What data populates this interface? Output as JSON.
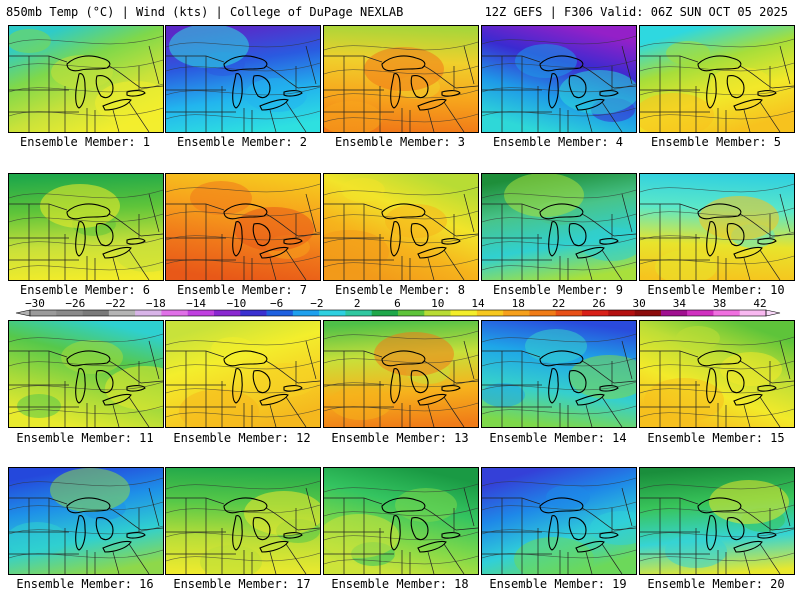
{
  "header": {
    "left": "850mb Temp (°C) | Wind (kts) | College of DuPage NEXLAB",
    "right": "12Z GEFS | F306 Valid: 06Z SUN OCT 05 2025"
  },
  "member_prefix": "Ensemble Member: ",
  "members": [
    1,
    2,
    3,
    4,
    5,
    6,
    7,
    8,
    9,
    10,
    11,
    12,
    13,
    14,
    15,
    16,
    17,
    18,
    19,
    20
  ],
  "member_palettes": [
    [
      "#2ecbc8",
      "#7fd84a",
      "#c9e23a",
      "#f3ee2e"
    ],
    [
      "#5a28c8",
      "#2a5ae0",
      "#22b4ee",
      "#2ee0e0"
    ],
    [
      "#a6d63a",
      "#f0d02c",
      "#f7a61c",
      "#f07818"
    ],
    [
      "#9420c8",
      "#3a2ad0",
      "#1e9ae8",
      "#2ed8d8"
    ],
    [
      "#2ed8e0",
      "#a6de3a",
      "#f2e82a",
      "#f7c21e"
    ],
    [
      "#1fa84a",
      "#5ec43a",
      "#c8e03a",
      "#f3ec2a"
    ],
    [
      "#f6c81e",
      "#f7a21c",
      "#f0781a",
      "#e85818"
    ],
    [
      "#b8dc34",
      "#f2e42a",
      "#f6b41c",
      "#f29a1a"
    ],
    [
      "#1e8e3a",
      "#48c48a",
      "#30d0d0",
      "#a8e03c"
    ],
    [
      "#30d0e0",
      "#5ce8c8",
      "#e8e42c",
      "#f6c41e"
    ],
    [
      "#2ed0d0",
      "#56c84a",
      "#a6da3a",
      "#e8ea2e"
    ],
    [
      "#c8e23a",
      "#f3ee2c",
      "#f6d224",
      "#f5b81e"
    ],
    [
      "#4ec048",
      "#c8e03a",
      "#f6b21c",
      "#f07c18"
    ],
    [
      "#2a4adc",
      "#1ea6e8",
      "#36d0cc",
      "#7ed84a"
    ],
    [
      "#5ec43a",
      "#bede36",
      "#f3ea2a",
      "#f6c01e"
    ],
    [
      "#2448dc",
      "#1e90e8",
      "#30d0d0",
      "#8ed84a"
    ],
    [
      "#22a84a",
      "#56c848",
      "#bade38",
      "#eeea2e"
    ],
    [
      "#1a9a44",
      "#34c460",
      "#7ed84a",
      "#cde43a"
    ],
    [
      "#3440d8",
      "#1e88e8",
      "#30d0d8",
      "#6cd85a"
    ],
    [
      "#1a8e3c",
      "#38c45a",
      "#36d4d4",
      "#e8e82e"
    ]
  ],
  "colorbar": {
    "labels": [
      "−30",
      "−26",
      "−22",
      "−18",
      "−14",
      "−10",
      "−6",
      "−2",
      "2",
      "6",
      "10",
      "14",
      "18",
      "22",
      "26",
      "30",
      "34",
      "38",
      "42"
    ],
    "colors": [
      "#9a9a9a",
      "#8a8a8a",
      "#7a7a7a",
      "#b4b4b4",
      "#d8b4e8",
      "#e070e8",
      "#c040e0",
      "#8a28d0",
      "#3a30d0",
      "#1e60e0",
      "#1ea0ee",
      "#2ed0e0",
      "#30c8a0",
      "#1fa84a",
      "#5ec43a",
      "#b8dc34",
      "#f3ee2a",
      "#f7c81e",
      "#f6a01c",
      "#f07c18",
      "#e85018",
      "#d82018",
      "#b41010",
      "#8c0c0c",
      "#a01090",
      "#d030c0",
      "#f070e0",
      "#f8b8f0"
    ]
  }
}
